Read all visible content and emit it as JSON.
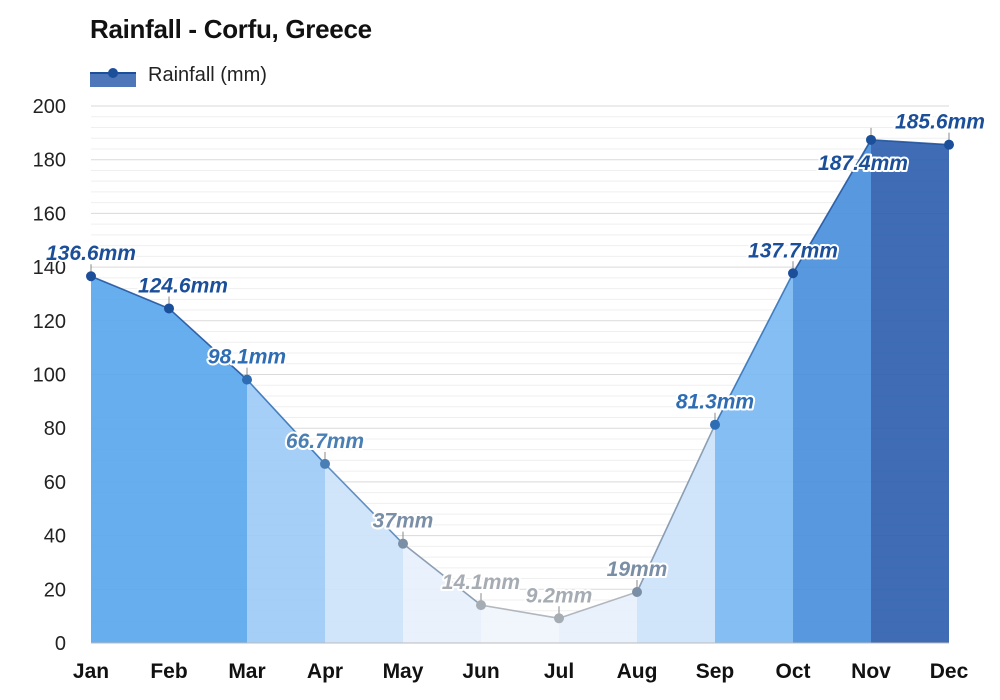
{
  "title": "Rainfall - Corfu, Greece",
  "legend": {
    "label": "Rainfall (mm)",
    "color": "#2f5fae"
  },
  "chart_data": {
    "type": "area",
    "title": "Rainfall - Corfu, Greece",
    "categories": [
      "Jan",
      "Feb",
      "Mar",
      "Apr",
      "May",
      "Jun",
      "Jul",
      "Aug",
      "Sep",
      "Oct",
      "Nov",
      "Dec"
    ],
    "series": [
      {
        "name": "Rainfall (mm)",
        "values": [
          136.6,
          124.6,
          98.1,
          66.7,
          37,
          14.1,
          9.2,
          19,
          81.3,
          137.7,
          187.4,
          185.6
        ],
        "labels": [
          "136.6mm",
          "124.6mm",
          "98.1mm",
          "66.7mm",
          "37mm",
          "14.1mm",
          "9.2mm",
          "19mm",
          "81.3mm",
          "137.7mm",
          "187.4mm",
          "185.6mm"
        ]
      }
    ],
    "ylim": [
      0,
      200
    ],
    "yticks": [
      0,
      20,
      40,
      60,
      80,
      100,
      120,
      140,
      160,
      180,
      200
    ],
    "grid": true,
    "legend_position": "top-left",
    "fill_colors": [
      "#5aa7ee",
      "#5aa7ee",
      "#9dcbf6",
      "#cde3fa",
      "#e6f0fc",
      "#f0f5fd",
      "#e6f0fc",
      "#cde3fa",
      "#7ab8f2",
      "#4a8fdc",
      "#2f5fae",
      "#2f5fae"
    ],
    "label_colors": [
      "#1b4f9a",
      "#1b4f9a",
      "#2e6db3",
      "#4a7fb5",
      "#7a8ea6",
      "#a6acb3",
      "#a6acb3",
      "#7a8ea6",
      "#2e6db3",
      "#1b4f9a",
      "#1b4f9a",
      "#1b4f9a"
    ]
  }
}
